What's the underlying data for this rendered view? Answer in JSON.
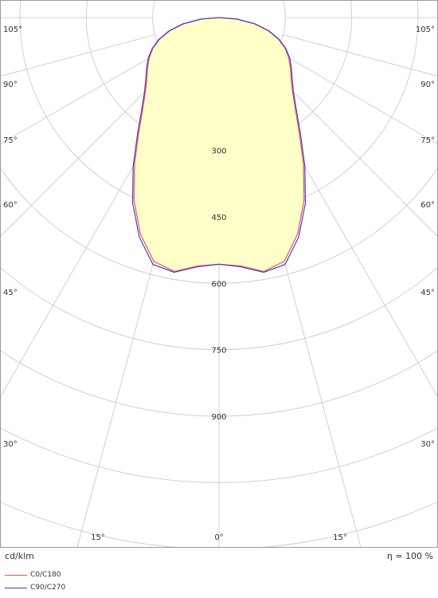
{
  "chart_data": {
    "type": "polar",
    "unit_label": "cd/klm",
    "efficiency_label": "η = 100 %",
    "radial_ticks": [
      300,
      450,
      600,
      750,
      900
    ],
    "angle_labels_left": [
      "105°",
      "90°",
      "75°",
      "60°",
      "45°",
      "30°",
      "15°"
    ],
    "angle_labels_right": [
      "105°",
      "90°",
      "75°",
      "60°",
      "45°",
      "30°",
      "15°"
    ],
    "angle_label_zero": "0°",
    "fill_color": "#ffffc8",
    "series": [
      {
        "name": "C0/C180",
        "color": "#ff5050",
        "angles": [
          0,
          5,
          10,
          15,
          20,
          25,
          30,
          35,
          40,
          45,
          50,
          55,
          60,
          65,
          70,
          75,
          80,
          85,
          90
        ],
        "values": [
          557,
          563,
          582,
          570,
          520,
          455,
          382,
          316,
          268,
          235,
          213,
          197,
          182,
          165,
          143,
          115,
          81,
          41,
          0
        ]
      },
      {
        "name": "C90/C270",
        "color": "#4040d0",
        "angles": [
          0,
          5,
          10,
          15,
          20,
          25,
          30,
          35,
          40,
          45,
          50,
          55,
          60,
          65,
          70,
          75,
          80,
          85,
          90
        ],
        "values": [
          557,
          565,
          584,
          577,
          527,
          462,
          388,
          321,
          272,
          238,
          216,
          200,
          185,
          167,
          145,
          117,
          83,
          42,
          0
        ]
      }
    ]
  }
}
